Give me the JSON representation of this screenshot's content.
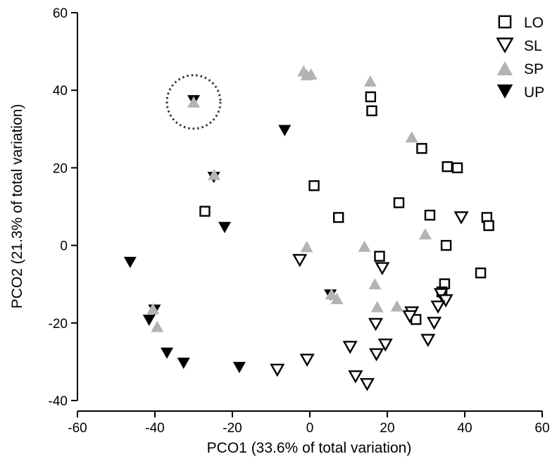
{
  "chart_data": {
    "type": "scatter",
    "title": "",
    "xlabel": "PCO1 (33.6% of total variation)",
    "ylabel": "PCO2 (21.3% of total variation)",
    "xlim": [
      -60,
      60
    ],
    "ylim": [
      -40,
      60
    ],
    "xticks": [
      -60,
      -40,
      -20,
      0,
      20,
      40,
      60
    ],
    "yticks": [
      -40,
      -20,
      0,
      20,
      40,
      60
    ],
    "grid": false,
    "legend_position": "top-right",
    "annotations": [
      {
        "shape": "dotted-circle",
        "center": [
          -30,
          37
        ]
      }
    ],
    "series": [
      {
        "name": "LO",
        "marker": "open-square",
        "color": "#000000",
        "points": [
          [
            15.7,
            38.3
          ],
          [
            16.0,
            34.7
          ],
          [
            28.9,
            25.0
          ],
          [
            35.5,
            20.3
          ],
          [
            38.1,
            20.0
          ],
          [
            1.1,
            15.4
          ],
          [
            23.0,
            11.0
          ],
          [
            31.0,
            7.8
          ],
          [
            45.7,
            7.2
          ],
          [
            46.2,
            5.1
          ],
          [
            -27.1,
            8.8
          ],
          [
            7.4,
            7.2
          ],
          [
            35.2,
            0.0
          ],
          [
            18.0,
            -2.8
          ],
          [
            44.1,
            -7.1
          ],
          [
            34.8,
            -9.9
          ],
          [
            34.1,
            -12.0
          ],
          [
            27.4,
            -19.1
          ]
        ]
      },
      {
        "name": "SL",
        "marker": "open-triangle-down",
        "color": "#000000",
        "points": [
          [
            39.1,
            7.2
          ],
          [
            -2.6,
            -3.8
          ],
          [
            18.7,
            -5.9
          ],
          [
            33.9,
            -12.6
          ],
          [
            35.1,
            -14.2
          ],
          [
            33.1,
            -15.8
          ],
          [
            26.3,
            -17.3
          ],
          [
            25.8,
            -18.3
          ],
          [
            32.1,
            -20.0
          ],
          [
            17.0,
            -20.3
          ],
          [
            30.5,
            -24.4
          ],
          [
            19.5,
            -25.6
          ],
          [
            10.4,
            -26.2
          ],
          [
            17.2,
            -28.1
          ],
          [
            -0.7,
            -29.5
          ],
          [
            -8.4,
            -32.1
          ],
          [
            11.8,
            -33.8
          ],
          [
            14.8,
            -35.8
          ]
        ]
      },
      {
        "name": "SP",
        "marker": "filled-triangle-up",
        "color": "#b3b3b3",
        "points": [
          [
            -1.6,
            45.0
          ],
          [
            0.3,
            44.2
          ],
          [
            -0.8,
            44.0
          ],
          [
            15.6,
            42.4
          ],
          [
            -30.0,
            37.0
          ],
          [
            26.3,
            28.0
          ],
          [
            -24.7,
            18.3
          ],
          [
            29.8,
            3.0
          ],
          [
            -0.8,
            -0.3
          ],
          [
            14.1,
            -0.2
          ],
          [
            16.8,
            -9.9
          ],
          [
            5.6,
            -12.5
          ],
          [
            7.0,
            -13.7
          ],
          [
            17.4,
            -15.8
          ],
          [
            22.5,
            -15.6
          ],
          [
            -40.5,
            -16.3
          ],
          [
            -39.4,
            -20.9
          ]
        ]
      },
      {
        "name": "UP",
        "marker": "filled-triangle-down",
        "color": "#000000",
        "points": [
          [
            -30.0,
            37.3
          ],
          [
            -6.5,
            29.6
          ],
          [
            -24.8,
            17.5
          ],
          [
            -22.0,
            4.6
          ],
          [
            -46.4,
            -4.4
          ],
          [
            5.3,
            -12.8
          ],
          [
            -40.1,
            -16.7
          ],
          [
            -41.5,
            -19.3
          ],
          [
            -36.9,
            -27.8
          ],
          [
            -32.6,
            -30.4
          ],
          [
            -18.2,
            -31.5
          ]
        ]
      }
    ]
  }
}
